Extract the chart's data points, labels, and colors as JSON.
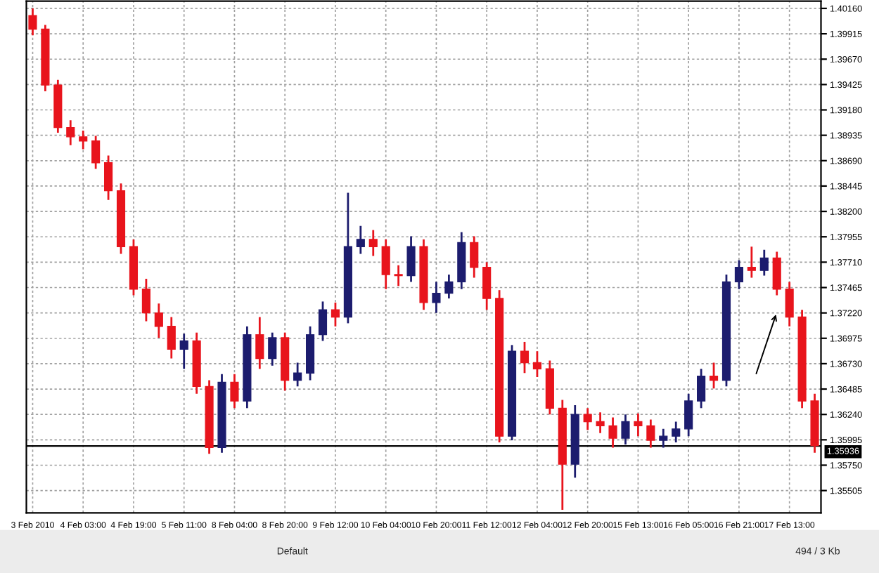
{
  "chart_data": {
    "type": "candlestick",
    "categories": [
      "3 Feb 2010",
      null,
      null,
      null,
      "4 Feb 03:00",
      null,
      null,
      null,
      "4 Feb 19:00",
      null,
      null,
      null,
      "5 Feb 11:00",
      null,
      null,
      null,
      "8 Feb 04:00",
      null,
      null,
      null,
      "8 Feb 20:00",
      null,
      null,
      null,
      "9 Feb 12:00",
      null,
      null,
      null,
      "10 Feb 04:00",
      null,
      null,
      null,
      "10 Feb 20:00",
      null,
      null,
      null,
      "11 Feb 12:00",
      null,
      null,
      null,
      "12 Feb 04:00",
      null,
      null,
      null,
      "12 Feb 20:00",
      null,
      null,
      null,
      "15 Feb 13:00",
      null,
      null,
      null,
      "16 Feb 05:00",
      null,
      null,
      null,
      "16 Feb 21:00",
      null,
      null,
      null,
      "17 Feb 13:00",
      null,
      null
    ],
    "ohlc": [
      [
        1.4009,
        1.4016,
        1.399,
        1.3996
      ],
      [
        1.3996,
        1.4,
        1.3936,
        1.3942
      ],
      [
        1.3942,
        1.3947,
        1.3896,
        1.3901
      ],
      [
        1.3901,
        1.3908,
        1.3884,
        1.3892
      ],
      [
        1.3892,
        1.3898,
        1.388,
        1.3888
      ],
      [
        1.3888,
        1.3893,
        1.3861,
        1.3867
      ],
      [
        1.3867,
        1.3874,
        1.3831,
        1.384
      ],
      [
        1.384,
        1.3847,
        1.3779,
        1.3786
      ],
      [
        1.3786,
        1.3793,
        1.3739,
        1.3745
      ],
      [
        1.3745,
        1.3755,
        1.3714,
        1.3722
      ],
      [
        1.3722,
        1.3731,
        1.3698,
        1.3709
      ],
      [
        1.3709,
        1.3718,
        1.3678,
        1.3687
      ],
      [
        1.3687,
        1.3702,
        1.3668,
        1.3695
      ],
      [
        1.3695,
        1.3703,
        1.3644,
        1.3651
      ],
      [
        1.3651,
        1.3657,
        1.3586,
        1.3592
      ],
      [
        1.3592,
        1.3663,
        1.3587,
        1.3655
      ],
      [
        1.3655,
        1.3663,
        1.363,
        1.3637
      ],
      [
        1.3637,
        1.3709,
        1.363,
        1.3701
      ],
      [
        1.3701,
        1.3718,
        1.3668,
        1.3678
      ],
      [
        1.3678,
        1.3703,
        1.3671,
        1.3698
      ],
      [
        1.3698,
        1.3703,
        1.3647,
        1.3657
      ],
      [
        1.3657,
        1.3674,
        1.3651,
        1.3664
      ],
      [
        1.3664,
        1.3709,
        1.3657,
        1.3701
      ],
      [
        1.3701,
        1.3733,
        1.3695,
        1.3725
      ],
      [
        1.3725,
        1.3732,
        1.3709,
        1.3718
      ],
      [
        1.3718,
        1.3838,
        1.3712,
        1.3786
      ],
      [
        1.3786,
        1.3806,
        1.3779,
        1.3793
      ],
      [
        1.3793,
        1.3802,
        1.3777,
        1.3786
      ],
      [
        1.3786,
        1.3793,
        1.3745,
        1.3759
      ],
      [
        1.3759,
        1.3768,
        1.3748,
        1.3758
      ],
      [
        1.3758,
        1.3796,
        1.3752,
        1.3786
      ],
      [
        1.3786,
        1.3793,
        1.3725,
        1.3732
      ],
      [
        1.3732,
        1.3752,
        1.3722,
        1.3741
      ],
      [
        1.3741,
        1.3759,
        1.3736,
        1.3752
      ],
      [
        1.3752,
        1.38,
        1.3745,
        1.379
      ],
      [
        1.379,
        1.3796,
        1.3756,
        1.3766
      ],
      [
        1.3766,
        1.3771,
        1.3725,
        1.3736
      ],
      [
        1.3736,
        1.3744,
        1.3597,
        1.3603
      ],
      [
        1.3603,
        1.3691,
        1.3599,
        1.3685
      ],
      [
        1.3685,
        1.3694,
        1.3664,
        1.3674
      ],
      [
        1.3674,
        1.3685,
        1.366,
        1.3668
      ],
      [
        1.3668,
        1.3676,
        1.3624,
        1.363
      ],
      [
        1.363,
        1.3638,
        1.3532,
        1.3576
      ],
      [
        1.3576,
        1.3633,
        1.3563,
        1.3624
      ],
      [
        1.3624,
        1.363,
        1.3609,
        1.3617
      ],
      [
        1.3617,
        1.3626,
        1.3606,
        1.3613
      ],
      [
        1.3613,
        1.3621,
        1.3592,
        1.3601
      ],
      [
        1.3601,
        1.3624,
        1.3595,
        1.3617
      ],
      [
        1.3617,
        1.3625,
        1.3603,
        1.3613
      ],
      [
        1.3613,
        1.3619,
        1.3592,
        1.3599
      ],
      [
        1.3599,
        1.361,
        1.3592,
        1.3603
      ],
      [
        1.3603,
        1.3617,
        1.3597,
        1.361
      ],
      [
        1.361,
        1.3644,
        1.3603,
        1.3637
      ],
      [
        1.3637,
        1.3668,
        1.363,
        1.3661
      ],
      [
        1.3661,
        1.3674,
        1.3649,
        1.3657
      ],
      [
        1.3657,
        1.3759,
        1.3651,
        1.3752
      ],
      [
        1.3752,
        1.3773,
        1.3745,
        1.3766
      ],
      [
        1.3766,
        1.3786,
        1.3756,
        1.3763
      ],
      [
        1.3763,
        1.3783,
        1.3758,
        1.3775
      ],
      [
        1.3775,
        1.3781,
        1.3739,
        1.3745
      ],
      [
        1.3745,
        1.3752,
        1.3709,
        1.3718
      ],
      [
        1.3718,
        1.3725,
        1.363,
        1.3637
      ],
      [
        1.3637,
        1.3644,
        1.3587,
        1.3594
      ]
    ],
    "colors": [
      "#e8141c",
      "#e8141c",
      "#e8141c",
      "#e8141c",
      "#e8141c",
      "#e8141c",
      "#e8141c",
      "#e8141c",
      "#e8141c",
      "#e8141c",
      "#e8141c",
      "#e8141c",
      "#1c1c6e",
      "#e8141c",
      "#e8141c",
      "#1c1c6e",
      "#e8141c",
      "#1c1c6e",
      "#e8141c",
      "#1c1c6e",
      "#e8141c",
      "#1c1c6e",
      "#1c1c6e",
      "#1c1c6e",
      "#e8141c",
      "#1c1c6e",
      "#1c1c6e",
      "#e8141c",
      "#e8141c",
      "#e8141c",
      "#1c1c6e",
      "#e8141c",
      "#1c1c6e",
      "#1c1c6e",
      "#1c1c6e",
      "#e8141c",
      "#e8141c",
      "#e8141c",
      "#1c1c6e",
      "#e8141c",
      "#e8141c",
      "#e8141c",
      "#e8141c",
      "#1c1c6e",
      "#e8141c",
      "#e8141c",
      "#e8141c",
      "#1c1c6e",
      "#e8141c",
      "#e8141c",
      "#1c1c6e",
      "#1c1c6e",
      "#1c1c6e",
      "#1c1c6e",
      "#e8141c",
      "#1c1c6e",
      "#1c1c6e",
      "#e8141c",
      "#1c1c6e",
      "#e8141c",
      "#e8141c",
      "#e8141c",
      "#e8141c"
    ],
    "ylim": [
      1.3529,
      1.4023
    ],
    "yticks": [
      {
        "value": 1.35505,
        "label": "1.35505"
      },
      {
        "value": 1.3575,
        "label": "1.35750"
      },
      {
        "value": 1.35995,
        "label": "1.35995"
      },
      {
        "value": 1.3624,
        "label": "1.36240"
      },
      {
        "value": 1.36485,
        "label": "1.36485"
      },
      {
        "value": 1.3673,
        "label": "1.36730"
      },
      {
        "value": 1.36975,
        "label": "1.36975"
      },
      {
        "value": 1.3722,
        "label": "1.37220"
      },
      {
        "value": 1.37465,
        "label": "1.37465"
      },
      {
        "value": 1.3771,
        "label": "1.37710"
      },
      {
        "value": 1.37955,
        "label": "1.37955"
      },
      {
        "value": 1.382,
        "label": "1.38200"
      },
      {
        "value": 1.38445,
        "label": "1.38445"
      },
      {
        "value": 1.3869,
        "label": "1.38690"
      },
      {
        "value": 1.38935,
        "label": "1.38935"
      },
      {
        "value": 1.3918,
        "label": "1.39180"
      },
      {
        "value": 1.39425,
        "label": "1.39425"
      },
      {
        "value": 1.3967,
        "label": "1.39670"
      },
      {
        "value": 1.39915,
        "label": "1.39915"
      },
      {
        "value": 1.4016,
        "label": "1.40160"
      }
    ],
    "ref_lines": [
      {
        "axis": "y",
        "value": 1.35936,
        "label": "1.35936",
        "color": "#000000"
      }
    ],
    "grid": true,
    "annotations": [
      "Default",
      "494 / 3 Kb"
    ]
  }
}
